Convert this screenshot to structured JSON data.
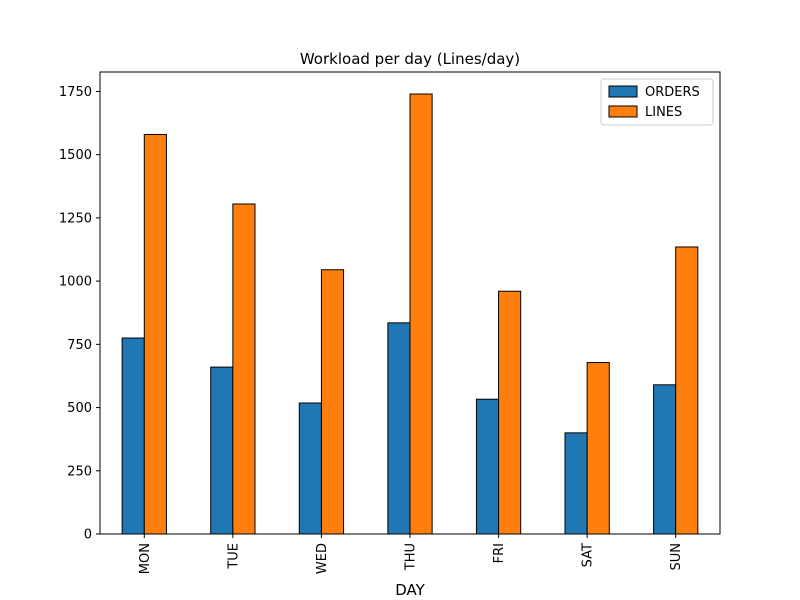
{
  "chart_data": {
    "type": "bar",
    "title": "Workload per day (Lines/day)",
    "xlabel": "DAY",
    "ylabel": "",
    "categories": [
      "MON",
      "TUE",
      "WED",
      "THU",
      "FRI",
      "SAT",
      "SUN"
    ],
    "series": [
      {
        "name": "ORDERS",
        "color": "#1f77b4",
        "values": [
          775,
          660,
          518,
          835,
          533,
          400,
          590
        ]
      },
      {
        "name": "LINES",
        "color": "#ff7f0e",
        "values": [
          1580,
          1305,
          1045,
          1740,
          960,
          678,
          1135
        ]
      }
    ],
    "ylim": [
      0,
      1827
    ],
    "yticks": [
      0,
      250,
      500,
      750,
      1000,
      1250,
      1500,
      1750
    ],
    "grid": false,
    "legend_position": "top-right"
  }
}
